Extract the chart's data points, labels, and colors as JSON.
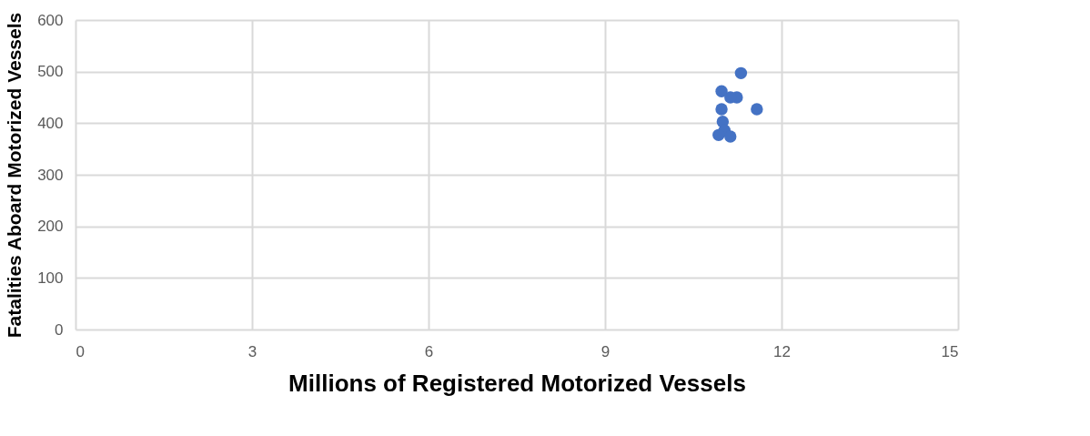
{
  "chart_data": {
    "type": "scatter",
    "xlabel": "Millions of Registered Motorized Vessels",
    "ylabel": "Fatalities Aboard Motorized Vessels",
    "x": [
      11.31,
      11.58,
      10.98,
      11.24,
      11.13,
      10.98,
      11.0,
      11.03,
      10.93,
      11.13
    ],
    "values": [
      497,
      427,
      462,
      450,
      450,
      427,
      403,
      386,
      377,
      374
    ],
    "color": "#4472c4",
    "marker": "circle",
    "xlim": [
      0,
      15
    ],
    "xticks": [
      0,
      3,
      6,
      9,
      12,
      15
    ],
    "ylim": [
      0,
      600
    ],
    "yticks": [
      0,
      100,
      200,
      300,
      400,
      500,
      600
    ],
    "grid": true
  }
}
